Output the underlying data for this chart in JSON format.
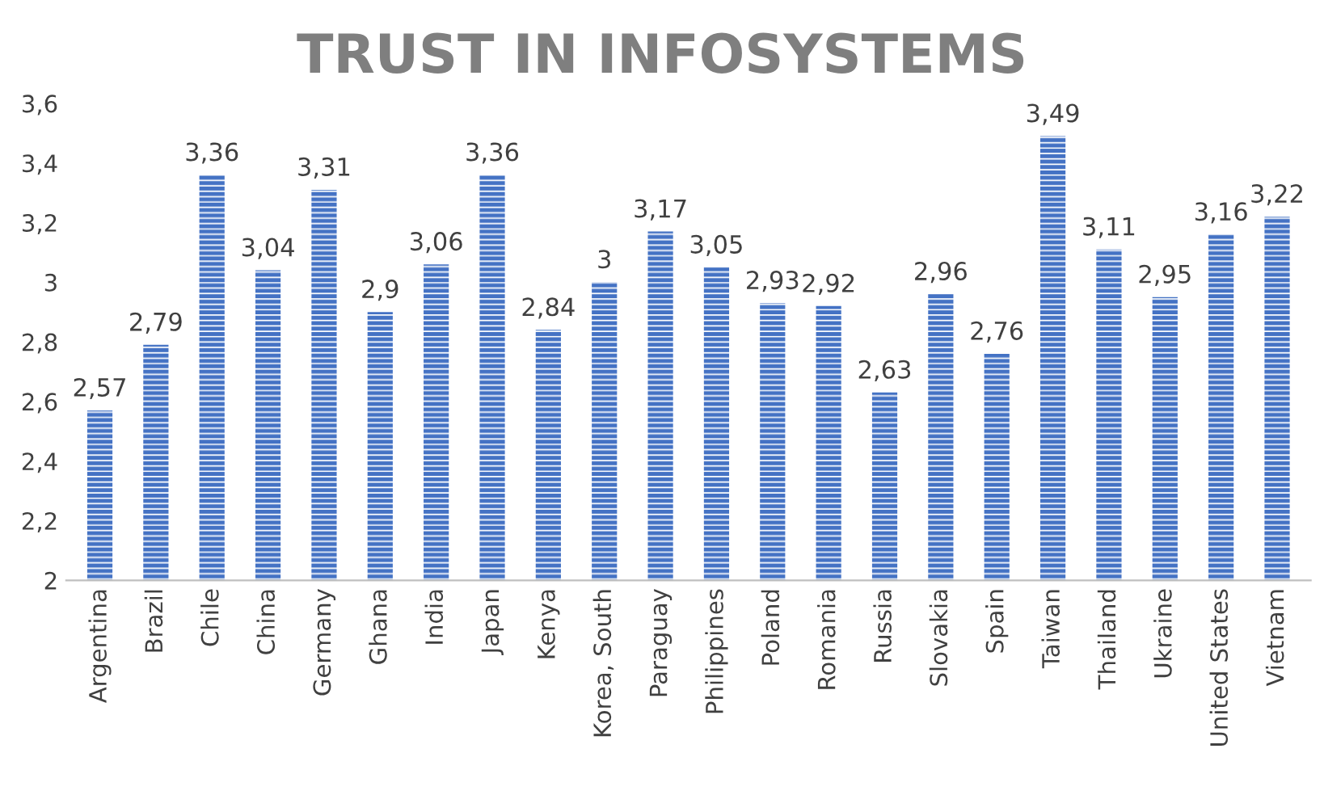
{
  "chart_data": {
    "type": "bar",
    "title": "TRUST IN INFOSYSTEMS",
    "categories": [
      "Argentina",
      "Brazil",
      "Chile",
      "China",
      "Germany",
      "Ghana",
      "India",
      "Japan",
      "Kenya",
      "Korea, South",
      "Paraguay",
      "Philippines",
      "Poland",
      "Romania",
      "Russia",
      "Slovakia",
      "Spain",
      "Taiwan",
      "Thailand",
      "Ukraine",
      "United States",
      "Vietnam"
    ],
    "values": [
      2.57,
      2.79,
      3.36,
      3.04,
      3.31,
      2.9,
      3.06,
      3.36,
      2.84,
      3,
      3.17,
      3.05,
      2.93,
      2.92,
      2.63,
      2.96,
      2.76,
      3.49,
      3.11,
      2.95,
      3.16,
      3.22
    ],
    "value_labels": [
      "2,57",
      "2,79",
      "3,36",
      "3,04",
      "3,31",
      "2,9",
      "3,06",
      "3,36",
      "2,84",
      "3",
      "3,17",
      "3,05",
      "2,93",
      "2,92",
      "2,63",
      "2,96",
      "2,76",
      "3,49",
      "3,11",
      "2,95",
      "3,16",
      "3,22"
    ],
    "color": "#4472c4",
    "ylim": [
      2,
      3.6
    ],
    "yticks": [
      2,
      {
        "value": 2.2,
        "label": "2,2"
      },
      {
        "value": 2.4,
        "label": "2,4"
      },
      {
        "value": 2.6,
        "label": "2,6"
      },
      {
        "value": 2.8,
        "label": "2,8"
      },
      3,
      {
        "value": 3.2,
        "label": "3,2"
      },
      {
        "value": 3.4,
        "label": "3,4"
      },
      {
        "value": 3.6,
        "label": "3,6"
      }
    ],
    "grid": false,
    "legend": false
  }
}
